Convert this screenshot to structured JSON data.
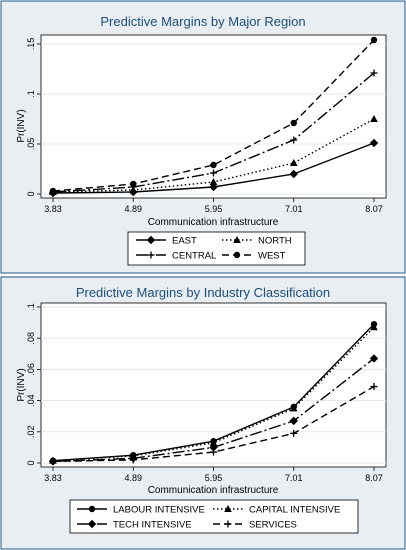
{
  "chart_data": [
    {
      "type": "line",
      "title": "Predictive Margins by Major Region",
      "xlabel": "Communication infrastructure",
      "ylabel": "Pr(INV)",
      "x": [
        3.83,
        4.89,
        5.95,
        7.01,
        8.07
      ],
      "x_tick_labels": [
        "3.83",
        "4.89",
        "5.95",
        "7.01",
        "8.07"
      ],
      "ylim": [
        0,
        0.155
      ],
      "y_ticks": [
        0,
        0.05,
        0.1,
        0.15
      ],
      "y_tick_labels": [
        "0",
        ".05",
        ".1",
        ".15"
      ],
      "grid": true,
      "legend_position": "bottom",
      "series": [
        {
          "name": "EAST",
          "values": [
            0.001,
            0.002,
            0.007,
            0.02,
            0.051
          ],
          "dash": "solid",
          "marker": "diamond",
          "color": "#000000"
        },
        {
          "name": "NORTH",
          "values": [
            0.002,
            0.004,
            0.012,
            0.031,
            0.075
          ],
          "dash": "dot",
          "marker": "triangle",
          "color": "#000000"
        },
        {
          "name": "CENTRAL",
          "values": [
            0.002,
            0.007,
            0.021,
            0.054,
            0.121
          ],
          "dash": "longdashdot",
          "marker": "plus",
          "color": "#000000"
        },
        {
          "name": "WEST",
          "values": [
            0.003,
            0.01,
            0.029,
            0.071,
            0.154
          ],
          "dash": "dash",
          "marker": "circle",
          "color": "#000000"
        }
      ]
    },
    {
      "type": "line",
      "title": "Predictive Margins by Industry Classification",
      "xlabel": "Communication infrastructure",
      "ylabel": "Pr(INV)",
      "x": [
        3.83,
        4.89,
        5.95,
        7.01,
        8.07
      ],
      "x_tick_labels": [
        "3.83",
        "4.89",
        "5.95",
        "7.01",
        "8.07"
      ],
      "ylim": [
        0,
        0.1
      ],
      "y_ticks": [
        0,
        0.02,
        0.04,
        0.06,
        0.08,
        0.1
      ],
      "y_tick_labels": [
        "0",
        ".02",
        ".04",
        ".06",
        ".08",
        ".1"
      ],
      "grid": true,
      "legend_position": "bottom",
      "series": [
        {
          "name": "LABOUR INTENSIVE",
          "values": [
            0.0015,
            0.005,
            0.014,
            0.036,
            0.089
          ],
          "dash": "solid",
          "marker": "circle",
          "color": "#000000"
        },
        {
          "name": "CAPITAL INTENSIVE",
          "values": [
            0.0015,
            0.0045,
            0.013,
            0.035,
            0.087
          ],
          "dash": "dot",
          "marker": "triangle",
          "color": "#000000"
        },
        {
          "name": "TECH INTENSIVE",
          "values": [
            0.001,
            0.003,
            0.01,
            0.027,
            0.067
          ],
          "dash": "longdashdot",
          "marker": "diamond",
          "color": "#000000"
        },
        {
          "name": "SERVICES",
          "values": [
            0.001,
            0.002,
            0.007,
            0.019,
            0.049
          ],
          "dash": "dash",
          "marker": "plus",
          "color": "#000000"
        }
      ]
    }
  ],
  "colors": {
    "outer_background": "#e8eef2",
    "frame_border": "#1f5a88",
    "title_color": "#1f4e79",
    "grid_color": "#e3e8ec",
    "plot_background": "#ffffff"
  }
}
